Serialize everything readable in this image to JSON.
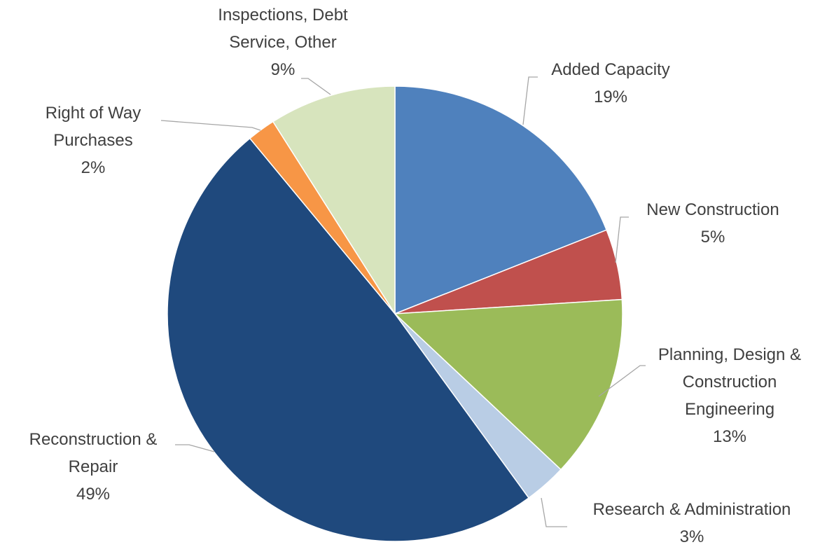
{
  "chart_data": {
    "type": "pie",
    "categories": [
      "Added Capacity",
      "New Construction",
      "Planning, Design & Construction Engineering",
      "Research & Administration",
      "Reconstruction & Repair",
      "Right of Way Purchases",
      "Inspections, Debt Service, Other"
    ],
    "values": [
      19,
      5,
      13,
      3,
      49,
      2,
      9
    ],
    "value_labels": [
      "19%",
      "5%",
      "13%",
      "3%",
      "49%",
      "2%",
      "9%"
    ],
    "colors": [
      "#4f81bd",
      "#c0504d",
      "#9bbb59",
      "#b9cde5",
      "#1f497d",
      "#f79646",
      "#d7e4bd"
    ]
  }
}
